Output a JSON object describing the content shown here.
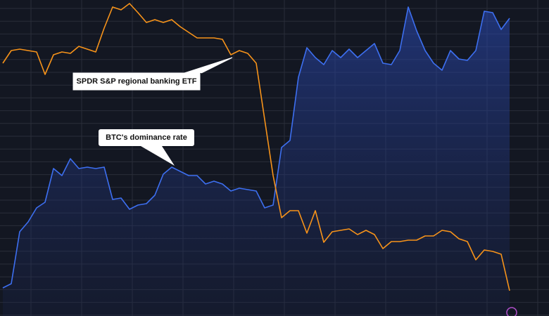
{
  "chart_data": {
    "type": "line",
    "annotations": [
      "SPDR S&P regional banking ETF",
      "BTC's dominance rate"
    ],
    "categories": [
      null,
      null,
      null,
      null,
      null,
      null,
      null,
      null,
      null,
      null,
      null,
      null,
      null,
      null,
      null,
      null,
      null,
      null,
      null,
      null,
      null,
      null,
      null,
      null,
      null,
      null,
      null,
      null,
      null,
      null,
      null,
      null,
      null,
      null,
      null,
      null,
      null,
      null,
      null,
      null,
      null,
      null,
      null,
      null,
      null,
      null,
      null,
      null,
      null,
      null,
      null,
      null,
      null,
      null,
      null,
      null,
      null,
      null,
      null,
      null,
      null
    ],
    "ylim": [
      0,
      450
    ],
    "grid": true,
    "series": [
      {
        "color": "#f7931a",
        "fill": false,
        "values": [
          360,
          378,
          380,
          378,
          376,
          344,
          372,
          376,
          374,
          384,
          380,
          376,
          410,
          440,
          436,
          445,
          432,
          418,
          422,
          418,
          422,
          412,
          404,
          396,
          396,
          396,
          394,
          372,
          378,
          374,
          360,
          280,
          200,
          140,
          150,
          150,
          118,
          150,
          105,
          120,
          122,
          124,
          116,
          122,
          116,
          96,
          106,
          106,
          108,
          108,
          114,
          114,
          122,
          120,
          110,
          106,
          80,
          94,
          92,
          88,
          36
        ]
      },
      {
        "color": "#3d6ff0",
        "fill": true,
        "values": [
          40,
          46,
          120,
          134,
          154,
          162,
          210,
          200,
          224,
          210,
          212,
          210,
          212,
          166,
          168,
          152,
          158,
          160,
          172,
          202,
          212,
          206,
          200,
          200,
          188,
          192,
          188,
          178,
          182,
          180,
          178,
          154,
          158,
          240,
          250,
          340,
          382,
          368,
          358,
          378,
          368,
          380,
          368,
          378,
          388,
          360,
          358,
          378,
          440,
          406,
          378,
          360,
          350,
          378,
          366,
          364,
          378,
          434,
          432,
          408,
          424
        ]
      }
    ]
  }
}
